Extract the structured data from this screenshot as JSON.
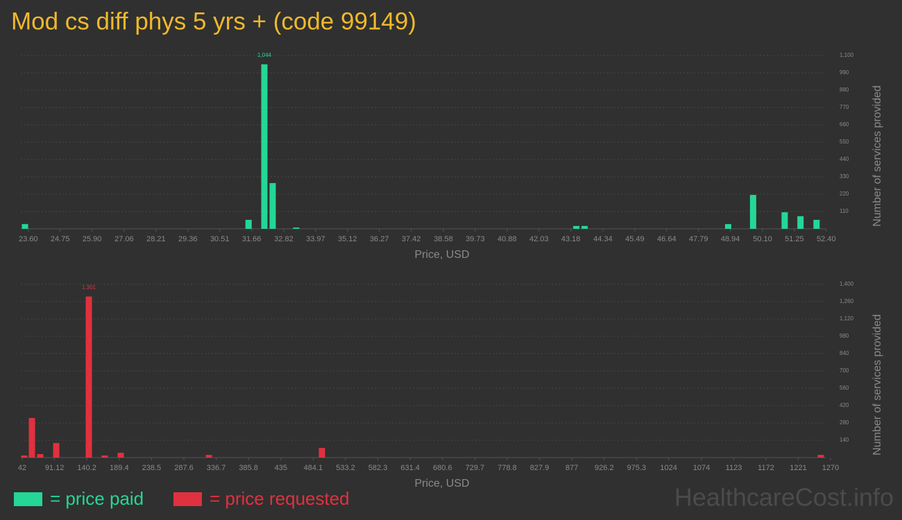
{
  "title": "Mod cs diff phys 5 yrs + (code 99149)",
  "chart_data": [
    {
      "type": "bar",
      "x": [
        23.48,
        31.55,
        32.12,
        32.42,
        33.27,
        43.38,
        43.68,
        48.86,
        49.76,
        50.9,
        51.47,
        52.05
      ],
      "values": [
        30,
        57,
        1044,
        290,
        8,
        18,
        18,
        30,
        215,
        105,
        80,
        57
      ],
      "value_labels": [
        null,
        null,
        "1,044",
        null,
        null,
        null,
        null,
        null,
        null,
        null,
        null,
        null
      ],
      "color": "#24d796",
      "xlim": [
        23.33,
        52.63
      ],
      "xticks": [
        {
          "value": 23.6,
          "label": "23.60"
        },
        24.75,
        {
          "value": 25.9,
          "label": "25.90"
        },
        27.06,
        28.21,
        29.36,
        30.51,
        31.66,
        32.82,
        33.97,
        35.12,
        36.27,
        37.42,
        38.58,
        39.73,
        40.88,
        42.03,
        43.18,
        44.34,
        45.49,
        46.64,
        47.79,
        48.94,
        {
          "value": 50.1,
          "label": "50.10"
        },
        51.25,
        {
          "value": 52.4,
          "label": "52.40"
        }
      ],
      "ylim": [
        0,
        1100
      ],
      "yticks": [
        110,
        220,
        330,
        440,
        550,
        660,
        770,
        880,
        990,
        {
          "value": 1100,
          "label": "1,100"
        }
      ],
      "xlabel": "Price, USD",
      "ylabel": "Number of services provided",
      "grid": true
    },
    {
      "type": "bar",
      "x": [
        45.2,
        56.8,
        69.4,
        93.7,
        143.2,
        167.4,
        191.7,
        325.6,
        497.4,
        1255.3
      ],
      "values": [
        17,
        320,
        28,
        118,
        1301,
        17,
        39,
        22,
        78,
        22
      ],
      "value_labels": [
        null,
        null,
        null,
        null,
        "1,301",
        null,
        null,
        null,
        null,
        null
      ],
      "color": "#e0313f",
      "xlim": [
        39.9,
        1273.2
      ],
      "xticks": [
        42,
        91.12,
        140.2,
        189.4,
        238.5,
        287.6,
        336.7,
        385.8,
        435,
        484.1,
        533.2,
        582.3,
        631.4,
        680.6,
        729.7,
        778.8,
        827.9,
        877,
        926.2,
        975.3,
        1024,
        1074,
        1123,
        1172,
        1221,
        1270
      ],
      "ylim": [
        0,
        1400
      ],
      "yticks": [
        140,
        280,
        420,
        560,
        700,
        840,
        980,
        {
          "value": 1120,
          "label": "1,120"
        },
        {
          "value": 1260,
          "label": "1,260"
        },
        {
          "value": 1400,
          "label": "1,400"
        }
      ],
      "xlabel": "Price, USD",
      "ylabel": "Number of services provided",
      "grid": true
    }
  ],
  "legend": [
    {
      "label": "= price paid",
      "color": "#24d796"
    },
    {
      "label": "= price requested",
      "color": "#e0313f"
    }
  ],
  "watermark": "HealthcareCost.info"
}
